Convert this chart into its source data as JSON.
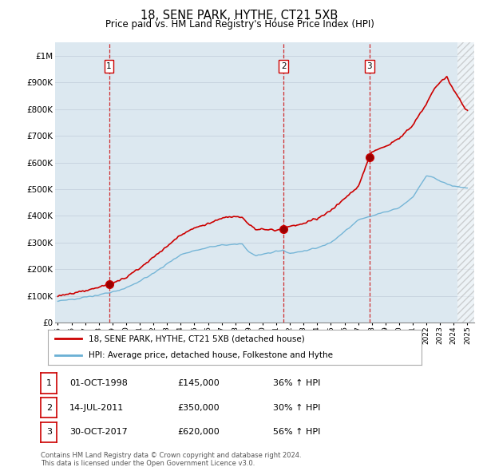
{
  "title": "18, SENE PARK, HYTHE, CT21 5XB",
  "subtitle": "Price paid vs. HM Land Registry's House Price Index (HPI)",
  "yticks": [
    0,
    100000,
    200000,
    300000,
    400000,
    500000,
    600000,
    700000,
    800000,
    900000,
    1000000
  ],
  "ytick_labels": [
    "£0",
    "£100K",
    "£200K",
    "£300K",
    "£400K",
    "£500K",
    "£600K",
    "£700K",
    "£800K",
    "£900K",
    "£1M"
  ],
  "xlim_start": 1994.8,
  "xlim_end": 2025.5,
  "ylim": [
    0,
    1050000
  ],
  "sale_dates": [
    1998.75,
    2011.54,
    2017.83
  ],
  "sale_prices": [
    145000,
    350000,
    620000
  ],
  "sale_labels": [
    "1",
    "2",
    "3"
  ],
  "hpi_color": "#6ab0d4",
  "price_color": "#cc0000",
  "vline_color": "#cc0000",
  "grid_color": "#c8d4e0",
  "background_color": "#ffffff",
  "plot_bg_color": "#dce8f0",
  "legend_line1": "18, SENE PARK, HYTHE, CT21 5XB (detached house)",
  "legend_line2": "HPI: Average price, detached house, Folkestone and Hythe",
  "table_rows": [
    [
      "1",
      "01-OCT-1998",
      "£145,000",
      "36% ↑ HPI"
    ],
    [
      "2",
      "14-JUL-2011",
      "£350,000",
      "30% ↑ HPI"
    ],
    [
      "3",
      "30-OCT-2017",
      "£620,000",
      "56% ↑ HPI"
    ]
  ],
  "footer": "Contains HM Land Registry data © Crown copyright and database right 2024.\nThis data is licensed under the Open Government Licence v3.0."
}
